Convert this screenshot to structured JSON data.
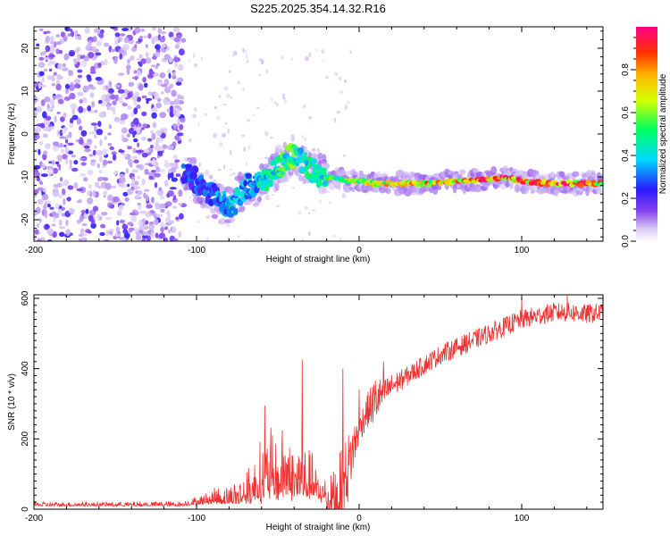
{
  "figure_title": "S225.2025.354.14.32.R16",
  "colors": {
    "snr_line": "#ee3333",
    "blob_dark": "#5a00e0",
    "blob_light": "#c8a8f0"
  },
  "chart_data": [
    {
      "type": "heatmap",
      "name": "spectrogram",
      "xlabel": "Height of straight line (km)",
      "ylabel": "Frequency (Hz)",
      "xlim": [
        -200,
        150
      ],
      "ylim": [
        -25,
        25
      ],
      "xticks": [
        -200,
        -100,
        0,
        100
      ],
      "yticks": [
        -20,
        -10,
        0,
        10,
        20
      ],
      "colorbar": {
        "label": "Normalized spectral amplitude",
        "range": [
          0,
          1
        ],
        "ticks": [
          "0.0",
          "0.2",
          "0.4",
          "0.6",
          "0.8"
        ],
        "colormap": "rainbow (white-lavender-purple-blue-cyan-green-yellow-orange-red-magenta)"
      },
      "ridge": {
        "description": "dominant frequency track",
        "x": [
          -105,
          -95,
          -85,
          -78,
          -70,
          -62,
          -55,
          -48,
          -42,
          -36,
          -30,
          -24,
          -18,
          -12,
          -6,
          0,
          10,
          20,
          40,
          60,
          80,
          90,
          100,
          120,
          150
        ],
        "freq": [
          -9,
          -13,
          -16,
          -17,
          -12,
          -12,
          -10,
          -7,
          -5,
          -6,
          -8,
          -9.5,
          -10,
          -10.5,
          -11,
          -11,
          -11.5,
          -11.5,
          -11.5,
          -11,
          -10.5,
          -10,
          -11,
          -11.5,
          -11.5
        ],
        "amplitude": [
          0.3,
          0.3,
          0.35,
          0.45,
          0.4,
          0.45,
          0.5,
          0.55,
          0.6,
          0.55,
          0.5,
          0.5,
          0.55,
          0.6,
          0.65,
          0.7,
          0.75,
          0.8,
          0.85,
          0.9,
          0.95,
          0.95,
          0.9,
          0.95,
          0.9
        ]
      },
      "noise_region": {
        "description": "broadband low-amplitude noise",
        "x_range": [
          -200,
          -108
        ],
        "freq_range": [
          -25,
          25
        ]
      }
    },
    {
      "type": "line",
      "name": "snr",
      "xlabel": "Height of straight line (km)",
      "ylabel": "SNR (10 * v/v)",
      "xlim": [
        -200,
        150
      ],
      "ylim": [
        0,
        610
      ],
      "xticks": [
        -200,
        -100,
        0,
        100
      ],
      "yticks": [
        0,
        200,
        400,
        600
      ],
      "envelope": {
        "x": [
          -200,
          -150,
          -110,
          -100,
          -90,
          -80,
          -70,
          -60,
          -55,
          -50,
          -45,
          -40,
          -35,
          -30,
          -25,
          -20,
          -15,
          -10,
          -5,
          0,
          5,
          10,
          15,
          20,
          30,
          40,
          50,
          60,
          70,
          80,
          90,
          100,
          110,
          120,
          130,
          140,
          150
        ],
        "base": [
          10,
          10,
          10,
          15,
          20,
          20,
          25,
          40,
          50,
          45,
          60,
          40,
          50,
          45,
          30,
          25,
          35,
          60,
          150,
          230,
          280,
          310,
          330,
          350,
          380,
          410,
          440,
          460,
          480,
          500,
          520,
          540,
          550,
          560,
          560,
          555,
          560
        ],
        "spread": [
          12,
          12,
          14,
          25,
          40,
          60,
          80,
          170,
          200,
          150,
          220,
          140,
          180,
          140,
          80,
          70,
          120,
          180,
          120,
          60,
          70,
          100,
          60,
          50,
          40,
          40,
          40,
          40,
          40,
          40,
          40,
          40,
          40,
          40,
          40,
          40,
          40
        ]
      },
      "peaks": [
        {
          "x": -58,
          "y": 295
        },
        {
          "x": -35,
          "y": 425
        },
        {
          "x": -10,
          "y": 400
        },
        {
          "x": 0,
          "y": 340
        },
        {
          "x": 15,
          "y": 420
        },
        {
          "x": 100,
          "y": 600
        },
        {
          "x": 128,
          "y": 608
        }
      ]
    }
  ]
}
